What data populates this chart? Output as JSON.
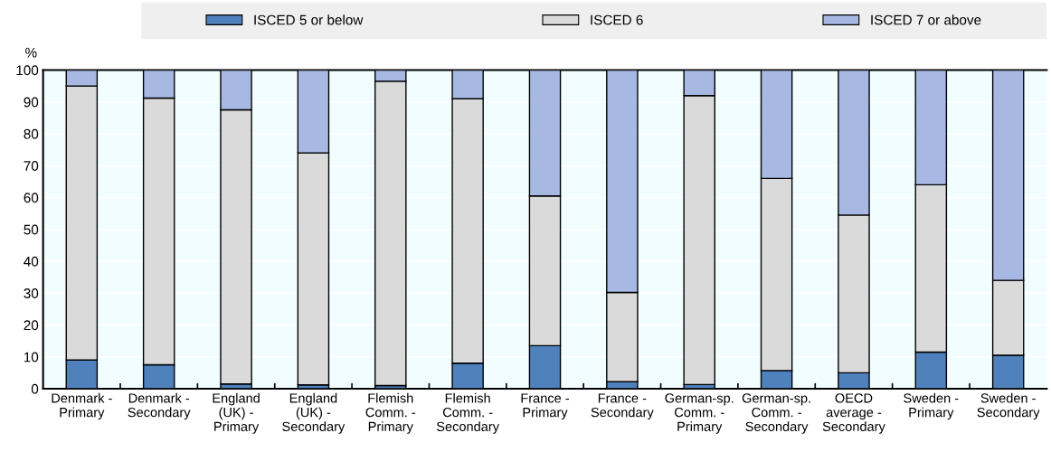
{
  "chart_data": {
    "type": "bar",
    "stacked": true,
    "ylabel": "%",
    "categories": [
      "Denmark -\nPrimary",
      "Denmark -\nSecondary",
      "England\n(UK) -\nPrimary",
      "England\n(UK) -\nSecondary",
      "Flemish\nComm. -\nPrimary",
      "Flemish\nComm. -\nSecondary",
      "France -\nPrimary",
      "France -\nSecondary",
      "German-sp.\nComm. -\nPrimary",
      "German-sp.\nComm. -\nSecondary",
      "OECD\naverage -\nSecondary",
      "Sweden -\nPrimary",
      "Sweden -\nSecondary"
    ],
    "series": [
      {
        "name": "ISCED 5 or below",
        "color": "#4f81bd",
        "values": [
          9,
          7.5,
          1.5,
          1.2,
          1,
          8,
          13.5,
          2.2,
          1.3,
          5.7,
          5,
          11.5,
          10.5
        ]
      },
      {
        "name": "ISCED 6",
        "color": "#dadada",
        "values": [
          86,
          83.7,
          86,
          72.8,
          95.5,
          83,
          47,
          28,
          90.7,
          60.3,
          49.5,
          52.5,
          23.5
        ]
      },
      {
        "name": "ISCED 7 or above",
        "color": "#a7b9e3",
        "values": [
          5,
          8.8,
          12.5,
          26,
          3.5,
          9,
          39.5,
          69.8,
          8,
          34,
          45.5,
          36,
          66
        ]
      }
    ],
    "ylim": [
      0,
      100
    ],
    "yticks": [
      0,
      10,
      20,
      30,
      40,
      50,
      60,
      70,
      80,
      90,
      100
    ],
    "grid": "y",
    "legend": "top"
  }
}
